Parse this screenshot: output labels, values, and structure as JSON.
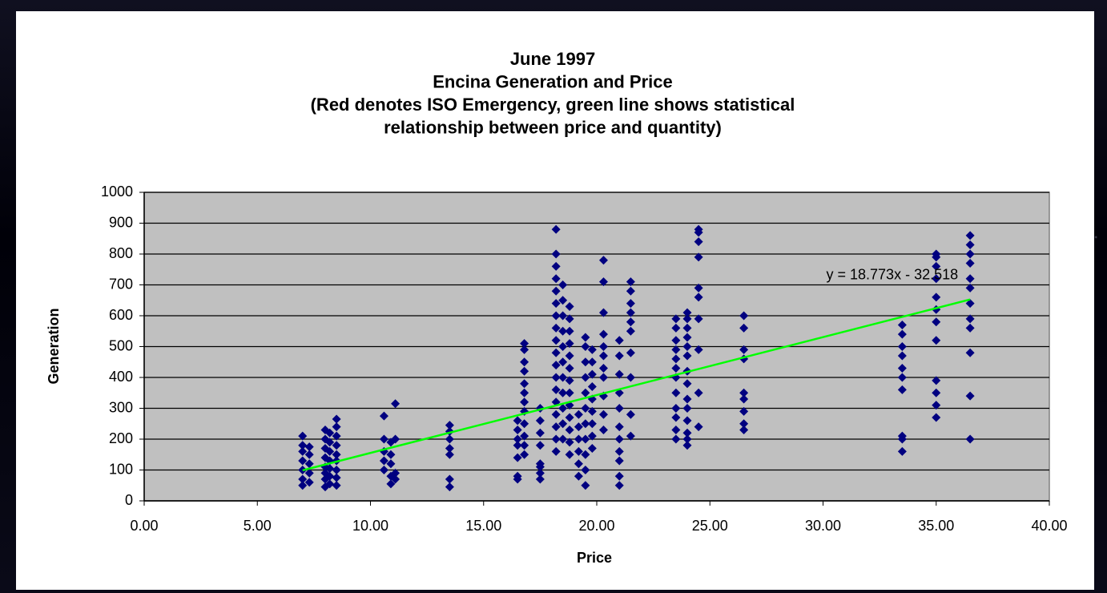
{
  "chart_data": {
    "type": "scatter",
    "title": [
      "June 1997",
      "Encina Generation and Price",
      "(Red denotes ISO Emergency, green line shows statistical",
      "relationship between price and quantity)"
    ],
    "x_label": "Price",
    "y_label": "Generation",
    "color": "#000080",
    "plot_background": "#c0c0c0",
    "grid": true,
    "xlim": [
      0,
      40
    ],
    "xticks": [
      {
        "value": 0,
        "label": "0.00"
      },
      {
        "value": 5,
        "label": "5.00"
      },
      {
        "value": 10,
        "label": "10.00"
      },
      {
        "value": 15,
        "label": "15.00"
      },
      {
        "value": 20,
        "label": "20.00"
      },
      {
        "value": 25,
        "label": "25.00"
      },
      {
        "value": 30,
        "label": "30.00"
      },
      {
        "value": 35,
        "label": "35.00"
      },
      {
        "value": 40,
        "label": "40.00"
      }
    ],
    "ylim": [
      0,
      1000
    ],
    "yticks": [
      0,
      100,
      200,
      300,
      400,
      500,
      600,
      700,
      800,
      900,
      1000
    ],
    "x": [
      7,
      7,
      7,
      7,
      7,
      7,
      7,
      7.3,
      7.3,
      7.3,
      7.3,
      7.3,
      8,
      8,
      8,
      8,
      8,
      8,
      8,
      8,
      8.2,
      8.2,
      8.2,
      8.2,
      8.2,
      8.2,
      8.2,
      8.5,
      8.5,
      8.5,
      8.5,
      8.5,
      8.5,
      8.5,
      8.5,
      8.5,
      10.6,
      10.6,
      10.6,
      10.6,
      10.6,
      10.9,
      10.9,
      10.9,
      10.9,
      10.9,
      11.1,
      11.1,
      11.1,
      11.1,
      13.5,
      13.5,
      13.5,
      13.5,
      13.5,
      13.5,
      13.5,
      16.5,
      16.5,
      16.5,
      16.5,
      16.5,
      16.5,
      16.5,
      16.8,
      16.8,
      16.8,
      16.8,
      16.8,
      16.8,
      16.8,
      16.8,
      16.8,
      16.8,
      16.8,
      16.8,
      17.5,
      17.5,
      17.5,
      17.5,
      17.5,
      17.5,
      17.5,
      17.5,
      18.2,
      18.2,
      18.2,
      18.2,
      18.2,
      18.2,
      18.2,
      18.2,
      18.2,
      18.2,
      18.2,
      18.2,
      18.2,
      18.2,
      18.2,
      18.2,
      18.2,
      18.2,
      18.5,
      18.5,
      18.5,
      18.5,
      18.5,
      18.5,
      18.5,
      18.5,
      18.5,
      18.5,
      18.5,
      18.8,
      18.8,
      18.8,
      18.8,
      18.8,
      18.8,
      18.8,
      18.8,
      18.8,
      18.8,
      18.8,
      18.8,
      18.8,
      19.2,
      19.2,
      19.2,
      19.2,
      19.2,
      19.2,
      19.5,
      19.5,
      19.5,
      19.5,
      19.5,
      19.5,
      19.5,
      19.5,
      19.5,
      19.5,
      19.5,
      19.8,
      19.8,
      19.8,
      19.8,
      19.8,
      19.8,
      19.8,
      19.8,
      19.8,
      20.3,
      20.3,
      20.3,
      20.3,
      20.3,
      20.3,
      20.3,
      20.3,
      20.3,
      20.3,
      20.3,
      21,
      21,
      21,
      21,
      21,
      21,
      21,
      21,
      21,
      21,
      21,
      21.5,
      21.5,
      21.5,
      21.5,
      21.5,
      21.5,
      21.5,
      21.5,
      21.5,
      21.5,
      23.5,
      23.5,
      23.5,
      23.5,
      23.5,
      23.5,
      23.5,
      23.5,
      23.5,
      23.5,
      23.5,
      23.5,
      24,
      24,
      24,
      24,
      24,
      24,
      24,
      24,
      24,
      24,
      24,
      24,
      24,
      24,
      24.5,
      24.5,
      24.5,
      24.5,
      24.5,
      24.5,
      24.5,
      24.5,
      24.5,
      24.5,
      26.5,
      26.5,
      26.5,
      26.5,
      26.5,
      26.5,
      26.5,
      26.5,
      26.5,
      33.5,
      33.5,
      33.5,
      33.5,
      33.5,
      33.5,
      33.5,
      33.5,
      33.5,
      33.5,
      35,
      35,
      35,
      35,
      35,
      35,
      35,
      35,
      35,
      35,
      35,
      35,
      36.5,
      36.5,
      36.5,
      36.5,
      36.5,
      36.5,
      36.5,
      36.5,
      36.5,
      36.5,
      36.5,
      36.5
    ],
    "values": [
      50,
      70,
      100,
      130,
      160,
      180,
      210,
      60,
      90,
      120,
      150,
      175,
      45,
      70,
      90,
      110,
      140,
      170,
      200,
      230,
      55,
      80,
      105,
      130,
      160,
      190,
      220,
      50,
      75,
      100,
      130,
      150,
      180,
      210,
      240,
      265,
      100,
      130,
      160,
      200,
      275,
      55,
      80,
      120,
      150,
      190,
      70,
      90,
      200,
      315,
      45,
      70,
      150,
      170,
      200,
      225,
      245,
      70,
      80,
      140,
      180,
      200,
      230,
      260,
      150,
      180,
      210,
      250,
      290,
      320,
      350,
      380,
      420,
      450,
      490,
      510,
      70,
      90,
      110,
      120,
      180,
      220,
      260,
      300,
      160,
      200,
      240,
      280,
      320,
      360,
      400,
      440,
      480,
      520,
      560,
      600,
      640,
      680,
      720,
      760,
      800,
      880,
      200,
      250,
      300,
      350,
      400,
      450,
      500,
      550,
      600,
      650,
      700,
      150,
      190,
      230,
      270,
      310,
      350,
      390,
      430,
      470,
      510,
      550,
      590,
      630,
      80,
      120,
      160,
      200,
      240,
      280,
      50,
      100,
      150,
      200,
      250,
      300,
      350,
      400,
      450,
      500,
      530,
      170,
      210,
      250,
      290,
      330,
      370,
      410,
      450,
      490,
      230,
      280,
      340,
      400,
      430,
      470,
      500,
      540,
      610,
      710,
      780,
      50,
      80,
      130,
      160,
      200,
      240,
      300,
      350,
      410,
      470,
      520,
      210,
      280,
      400,
      480,
      550,
      580,
      610,
      640,
      680,
      710,
      200,
      230,
      270,
      300,
      350,
      400,
      430,
      460,
      490,
      520,
      560,
      590,
      180,
      200,
      220,
      260,
      300,
      330,
      380,
      420,
      470,
      500,
      530,
      560,
      590,
      610,
      240,
      350,
      490,
      590,
      660,
      690,
      790,
      840,
      870,
      880,
      230,
      250,
      290,
      330,
      350,
      460,
      490,
      560,
      600,
      160,
      200,
      210,
      360,
      400,
      430,
      470,
      500,
      540,
      570,
      270,
      310,
      350,
      390,
      520,
      580,
      620,
      660,
      720,
      760,
      790,
      800,
      200,
      340,
      480,
      560,
      590,
      640,
      690,
      720,
      770,
      800,
      830,
      860
    ],
    "trendline": {
      "label": "y = 18.773x - 32.518",
      "slope": 18.773,
      "intercept": -32.518,
      "x_range": [
        7,
        36.5
      ],
      "color": "#00ff00"
    }
  }
}
